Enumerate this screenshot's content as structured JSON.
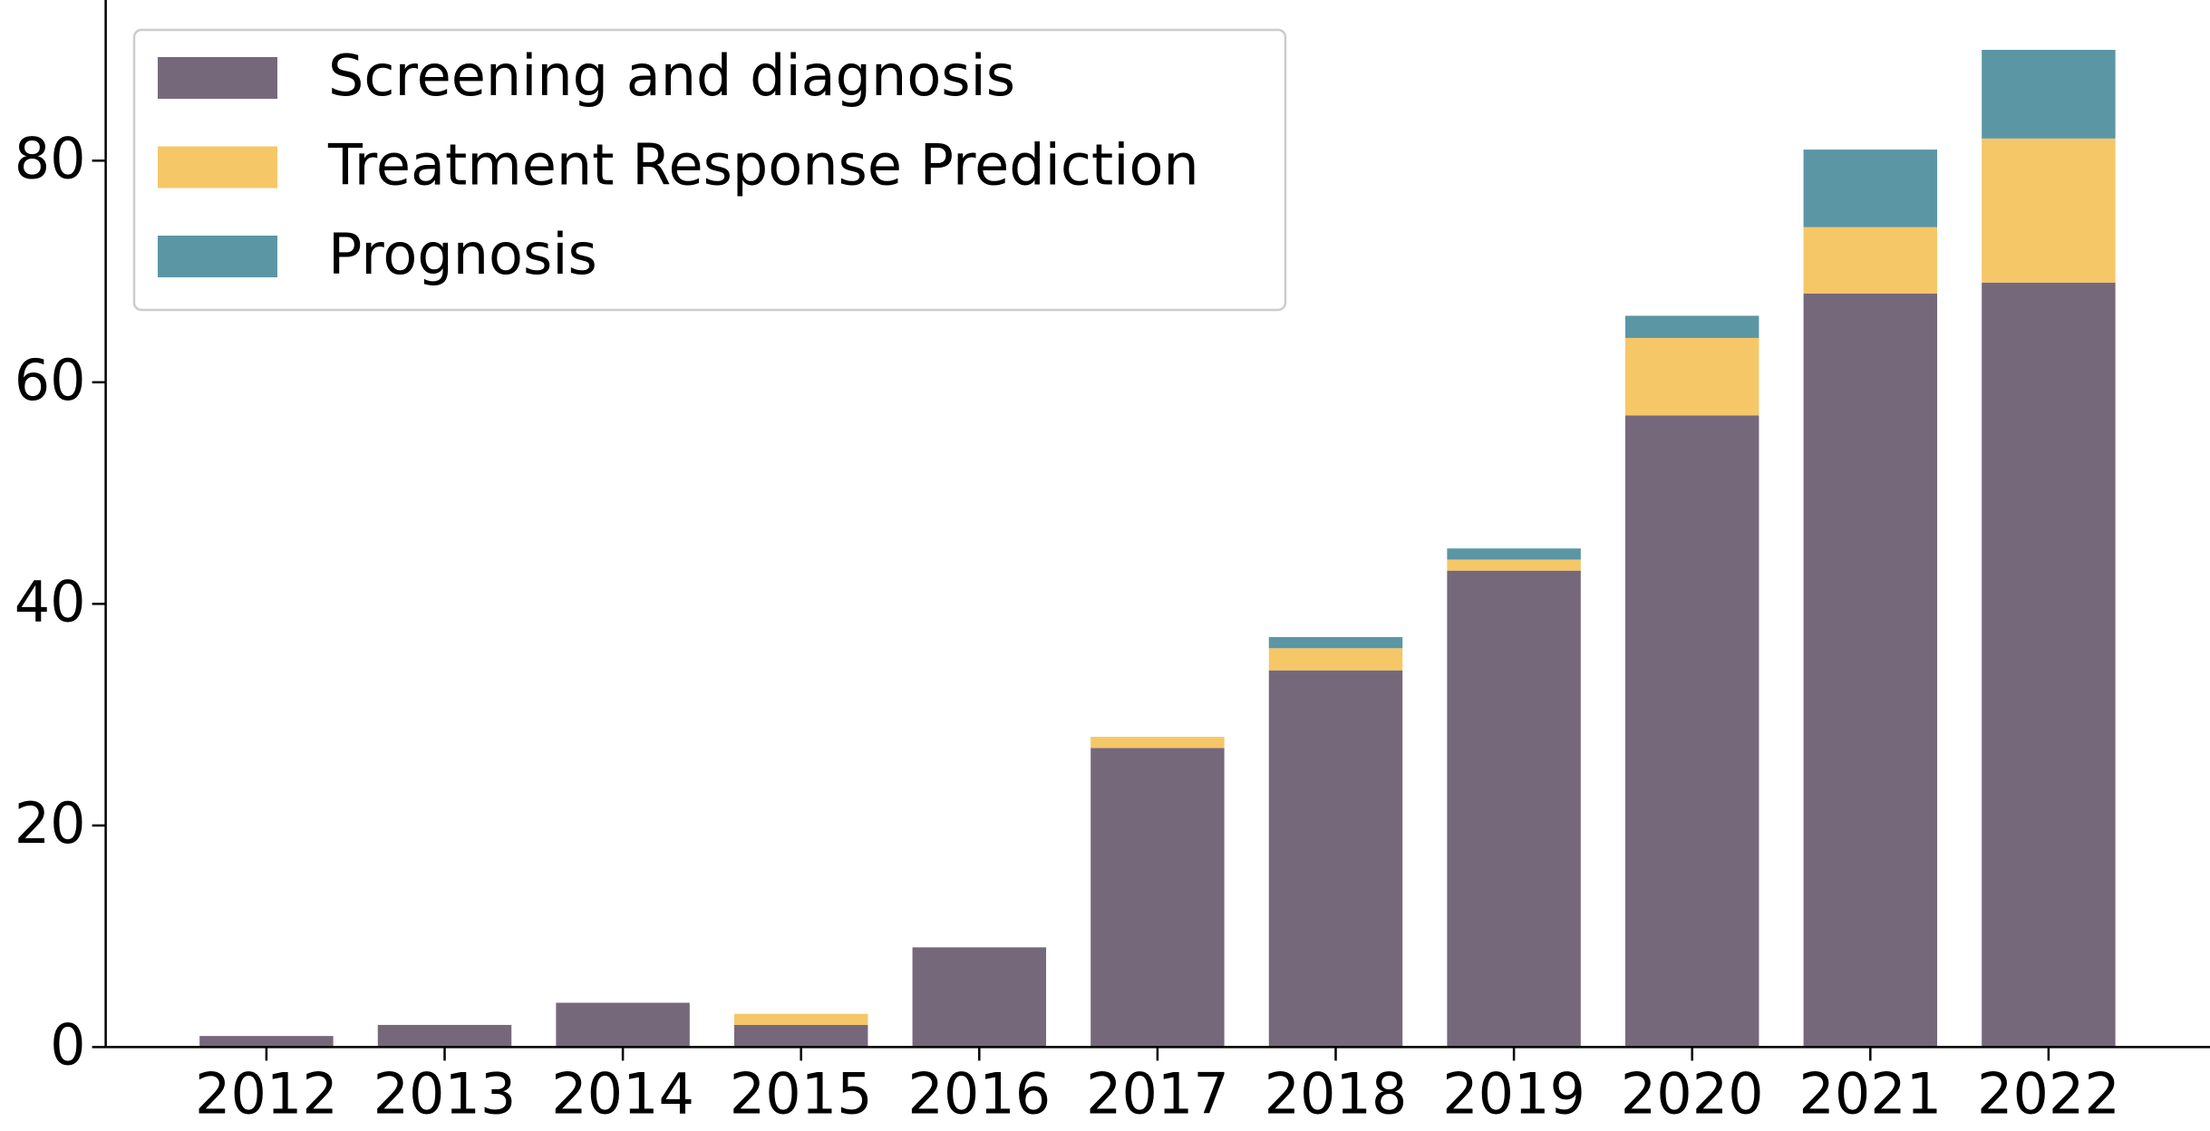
{
  "chart_data": {
    "type": "stacked_bar",
    "categories": [
      "2012",
      "2013",
      "2014",
      "2015",
      "2016",
      "2017",
      "2018",
      "2019",
      "2020",
      "2021",
      "2022"
    ],
    "series": [
      {
        "name": "Screening and diagnosis",
        "color": "#76687b",
        "values": [
          1,
          2,
          4,
          2,
          9,
          27,
          34,
          43,
          57,
          68,
          69
        ]
      },
      {
        "name": "Treatment Response Prediction",
        "color": "#f5c767",
        "values": [
          0,
          0,
          0,
          1,
          0,
          1,
          2,
          1,
          7,
          6,
          13
        ]
      },
      {
        "name": "Prognosis",
        "color": "#5b96a5",
        "values": [
          0,
          0,
          0,
          0,
          0,
          0,
          1,
          1,
          2,
          7,
          8
        ]
      }
    ],
    "ylim": [
      0,
      94.5
    ],
    "yticks": [
      0,
      20,
      40,
      60,
      80
    ],
    "legend": "upper left",
    "grid": false
  }
}
